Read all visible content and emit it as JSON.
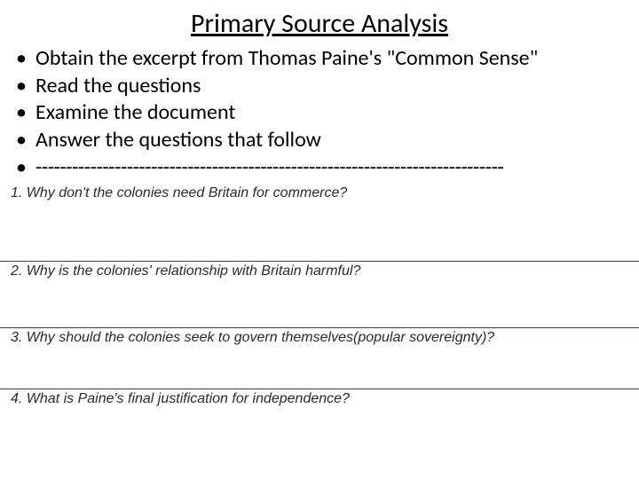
{
  "title": "Primary Source Analysis",
  "bullets": {
    "b0": "Obtain the excerpt from Thomas Paine's \"Common Sense\"",
    "b1": "Read the questions",
    "b2": "Examine the document",
    "b3": "Answer the questions that follow",
    "b4": "-----------------------------------------------------------------------------"
  },
  "questions": {
    "q1": "1. Why don't the colonies need Britain for commerce?",
    "q2": "2. Why is the colonies' relationship with Britain harmful?",
    "q3": "3. Why should the colonies seek to govern themselves(popular sovereignty)?",
    "q4": "4. What is Paine's final justification for independence?"
  },
  "colors": {
    "background": "#ffffff",
    "text": "#000000",
    "question_text": "#2a2a2a",
    "divider": "#3a3a5a"
  },
  "fonts": {
    "title_size": 30,
    "bullet_size": 24,
    "question_size": 16
  }
}
